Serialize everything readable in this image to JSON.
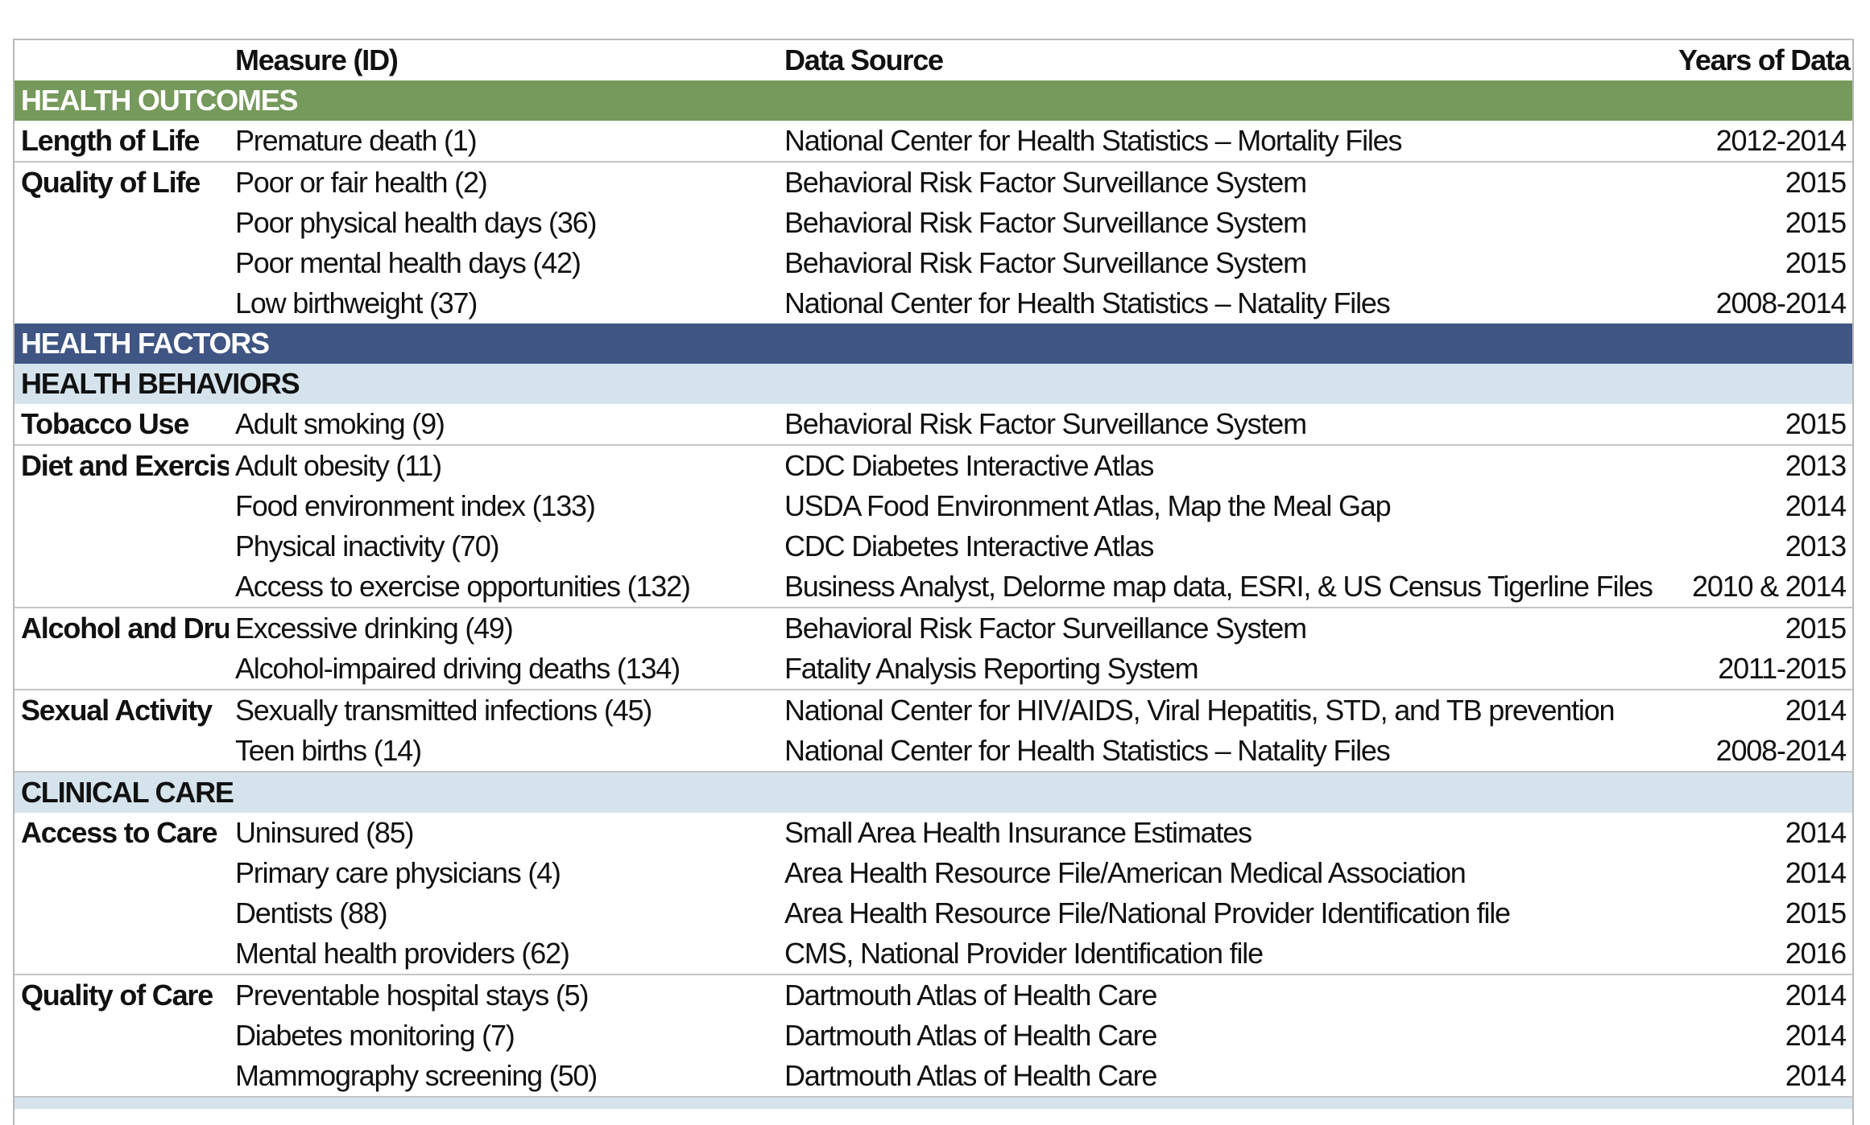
{
  "header": {
    "measure": "Measure (ID)",
    "source": "Data Source",
    "years": "Years of Data"
  },
  "sections": {
    "outcomes": "HEALTH OUTCOMES",
    "factors": "HEALTH FACTORS",
    "behaviors": "HEALTH BEHAVIORS",
    "clinical": "CLINICAL CARE"
  },
  "rows": {
    "r1": {
      "category": "Length of Life",
      "measure": "Premature death (1)",
      "source": "National Center for Health Statistics – Mortality Files",
      "years": "2012-2014"
    },
    "r2": {
      "category": "Quality of Life",
      "measure": "Poor or fair health  (2)",
      "source": "Behavioral Risk Factor Surveillance System",
      "years": "2015"
    },
    "r3": {
      "measure": "Poor physical health days (36)",
      "source": "Behavioral Risk Factor Surveillance System",
      "years": "2015"
    },
    "r4": {
      "measure": "Poor mental health days (42)",
      "source": "Behavioral Risk Factor Surveillance System",
      "years": "2015"
    },
    "r5": {
      "measure": "Low birthweight (37)",
      "source": "National Center for Health Statistics – Natality Files",
      "years": "2008-2014"
    },
    "r6": {
      "category": "Tobacco Use",
      "measure": "Adult smoking (9)",
      "source": "Behavioral Risk Factor Surveillance System",
      "years": "2015"
    },
    "r7": {
      "category": "Diet and Exercise",
      "measure": "Adult obesity (11)",
      "source": "CDC Diabetes Interactive Atlas",
      "years": "2013"
    },
    "r8": {
      "measure": "Food environment index (133)",
      "source": "USDA Food Environment Atlas, Map the Meal Gap",
      "years": "2014"
    },
    "r9": {
      "measure": "Physical inactivity (70)",
      "source": "CDC Diabetes Interactive Atlas",
      "years": "2013"
    },
    "r10": {
      "measure": "Access to exercise opportunities (132)",
      "source": "Business Analyst, Delorme map data, ESRI, & US Census Tigerline Files",
      "years": "2010 & 2014"
    },
    "r11": {
      "category": "Alcohol and Drug Use",
      "measure": "Excessive drinking (49)",
      "source": "Behavioral Risk Factor Surveillance System",
      "years": "2015"
    },
    "r12": {
      "measure": "Alcohol-impaired driving deaths (134)",
      "source": "Fatality Analysis Reporting System",
      "years": "2011-2015"
    },
    "r13": {
      "category": "Sexual Activity",
      "measure": "Sexually transmitted infections (45)",
      "source": "National Center for HIV/AIDS, Viral Hepatitis, STD, and TB prevention",
      "years": "2014"
    },
    "r14": {
      "measure": "Teen births (14)",
      "source": "National Center for Health Statistics – Natality Files",
      "years": "2008-2014"
    },
    "r15": {
      "category": "Access to Care",
      "measure": "Uninsured (85)",
      "source": "Small Area Health Insurance Estimates",
      "years": "2014"
    },
    "r16": {
      "measure": "Primary care physicians (4)",
      "source": "Area Health Resource File/American Medical Association",
      "years": "2014"
    },
    "r17": {
      "measure": "Dentists (88)",
      "source": "Area Health Resource File/National Provider Identification file",
      "years": "2015"
    },
    "r18": {
      "measure": "Mental health providers (62)",
      "source": "CMS, National Provider Identification file",
      "years": "2016"
    },
    "r19": {
      "category": "Quality of Care",
      "measure": "Preventable hospital stays (5)",
      "source": "Dartmouth Atlas of Health Care",
      "years": "2014"
    },
    "r20": {
      "measure": "Diabetes monitoring (7)",
      "source": "Dartmouth Atlas of Health Care",
      "years": "2014"
    },
    "r21": {
      "measure": "Mammography screening (50)",
      "source": "Dartmouth Atlas of Health Care",
      "years": "2014"
    }
  }
}
